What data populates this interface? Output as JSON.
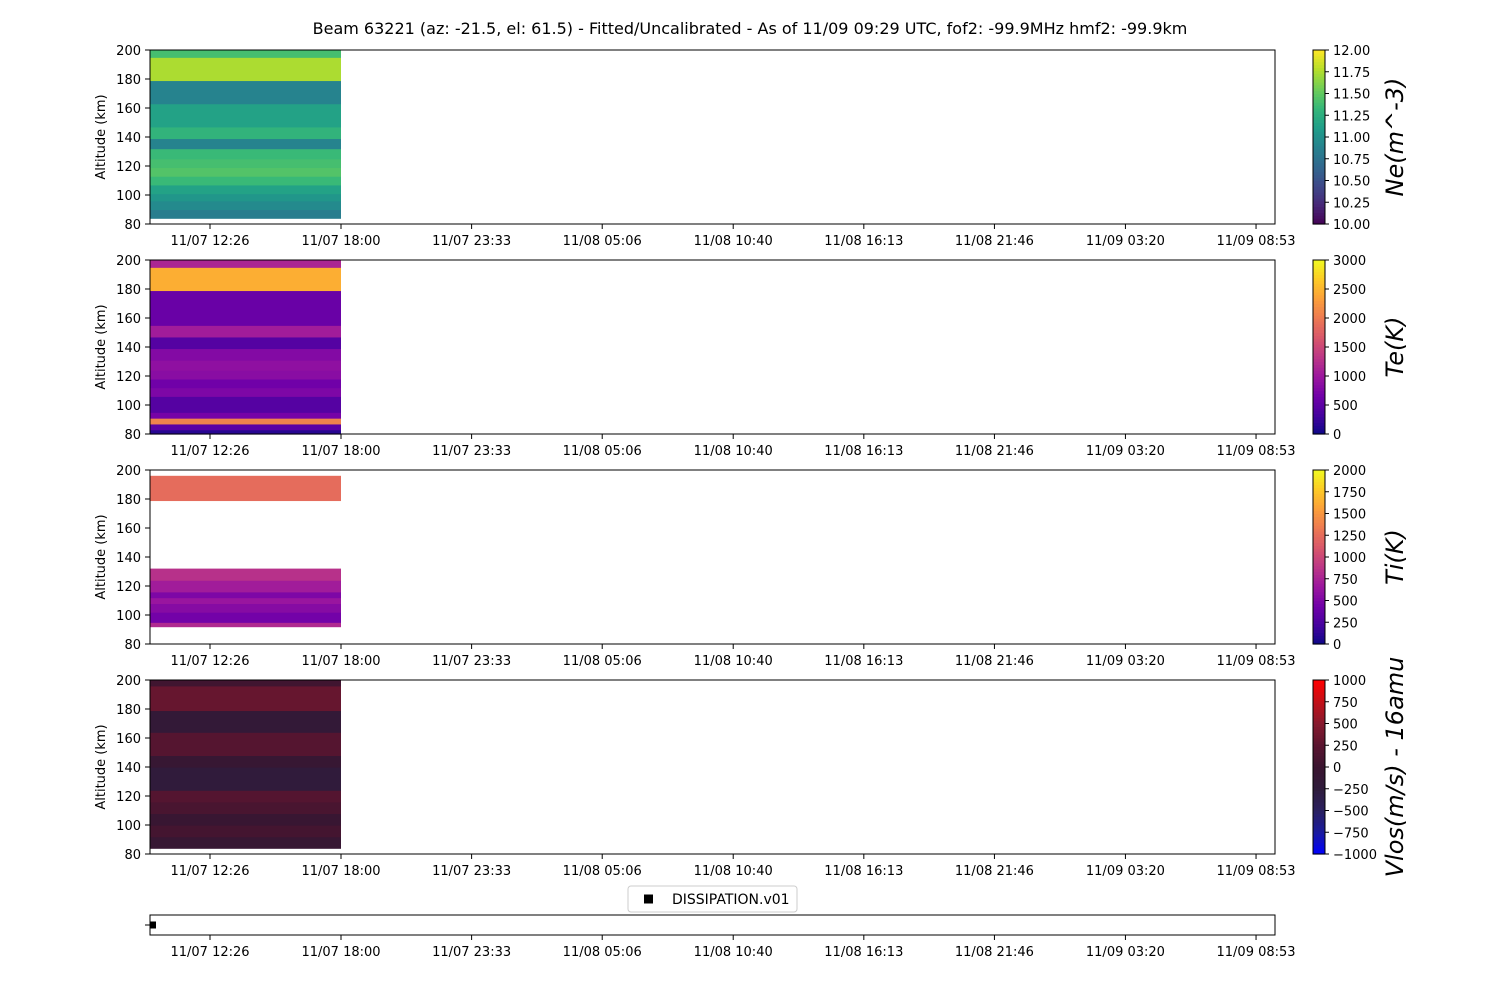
{
  "title": "Beam 63221 (az: -21.5, el: 61.5) - Fitted/Uncalibrated - As of 11/09 09:29 UTC, fof2: -99.9MHz  hmf2: -99.9km",
  "x_tick_labels": [
    "11/07 12:26",
    "11/07 18:00",
    "11/07 23:33",
    "11/08 05:06",
    "11/08 10:40",
    "11/08 16:13",
    "11/08 21:46",
    "11/09 03:20",
    "11/09 08:53"
  ],
  "legend_label": "DISSIPATION.v01",
  "chart_data": [
    {
      "type": "heatmap",
      "ylabel": "Altitude (km)",
      "ylim": [
        80,
        200
      ],
      "y_ticks": [
        80,
        100,
        120,
        140,
        160,
        180,
        200
      ],
      "x_span": [
        "11/07 09:49",
        "11/07 18:00"
      ],
      "colorbar_label": "Ne(m^-3)",
      "colormap": "viridis",
      "clim": [
        10.0,
        12.0
      ],
      "colorbar_ticks": [
        "10.00",
        "10.25",
        "10.50",
        "10.75",
        "11.00",
        "11.25",
        "11.50",
        "11.75",
        "12.00"
      ],
      "bands": [
        {
          "alt": [
            84,
            90
          ],
          "value": 10.85
        },
        {
          "alt": [
            90,
            96
          ],
          "value": 10.95
        },
        {
          "alt": [
            96,
            101
          ],
          "value": 11.05
        },
        {
          "alt": [
            101,
            107
          ],
          "value": 11.15
        },
        {
          "alt": [
            107,
            113
          ],
          "value": 11.35
        },
        {
          "alt": [
            113,
            119
          ],
          "value": 11.45
        },
        {
          "alt": [
            119,
            125
          ],
          "value": 11.4
        },
        {
          "alt": [
            125,
            132
          ],
          "value": 11.35
        },
        {
          "alt": [
            132,
            139
          ],
          "value": 10.9
        },
        {
          "alt": [
            139,
            147
          ],
          "value": 11.3
        },
        {
          "alt": [
            147,
            163
          ],
          "value": 11.15
        },
        {
          "alt": [
            163,
            179
          ],
          "value": 10.9
        },
        {
          "alt": [
            179,
            195
          ],
          "value": 11.75
        },
        {
          "alt": [
            195,
            200
          ],
          "value": 11.4
        }
      ]
    },
    {
      "type": "heatmap",
      "ylabel": "Altitude (km)",
      "ylim": [
        80,
        200
      ],
      "y_ticks": [
        80,
        100,
        120,
        140,
        160,
        180,
        200
      ],
      "x_span": [
        "11/07 09:49",
        "11/07 18:00"
      ],
      "colorbar_label": "Te(K)",
      "colormap": "plasma",
      "clim": [
        0,
        3000
      ],
      "colorbar_ticks": [
        "0",
        "500",
        "1000",
        "1500",
        "2000",
        "2500",
        "3000"
      ],
      "bands": [
        {
          "alt": [
            80,
            83
          ],
          "value": 150
        },
        {
          "alt": [
            83,
            87
          ],
          "value": 500
        },
        {
          "alt": [
            87,
            91
          ],
          "value": 2100
        },
        {
          "alt": [
            91,
            95
          ],
          "value": 700
        },
        {
          "alt": [
            95,
            106
          ],
          "value": 450
        },
        {
          "alt": [
            106,
            112
          ],
          "value": 750
        },
        {
          "alt": [
            112,
            118
          ],
          "value": 650
        },
        {
          "alt": [
            118,
            124
          ],
          "value": 850
        },
        {
          "alt": [
            124,
            131
          ],
          "value": 900
        },
        {
          "alt": [
            131,
            139
          ],
          "value": 800
        },
        {
          "alt": [
            139,
            147
          ],
          "value": 450
        },
        {
          "alt": [
            147,
            155
          ],
          "value": 1050
        },
        {
          "alt": [
            155,
            179
          ],
          "value": 600
        },
        {
          "alt": [
            179,
            195
          ],
          "value": 2450
        },
        {
          "alt": [
            195,
            200
          ],
          "value": 1150
        }
      ]
    },
    {
      "type": "heatmap",
      "ylabel": "Altitude (km)",
      "ylim": [
        80,
        200
      ],
      "y_ticks": [
        80,
        100,
        120,
        140,
        160,
        180,
        200
      ],
      "x_span": [
        "11/07 09:49",
        "11/07 18:00"
      ],
      "colorbar_label": "Ti(K)",
      "colormap": "plasma",
      "clim": [
        0,
        2000
      ],
      "colorbar_ticks": [
        "0",
        "250",
        "500",
        "750",
        "1000",
        "1250",
        "1500",
        "1750",
        "2000"
      ],
      "bands": [
        {
          "alt": [
            92,
            95
          ],
          "value": 800
        },
        {
          "alt": [
            95,
            102
          ],
          "value": 450
        },
        {
          "alt": [
            102,
            108
          ],
          "value": 550
        },
        {
          "alt": [
            108,
            112
          ],
          "value": 650
        },
        {
          "alt": [
            112,
            116
          ],
          "value": 500
        },
        {
          "alt": [
            116,
            124
          ],
          "value": 700
        },
        {
          "alt": [
            124,
            132
          ],
          "value": 850
        },
        {
          "alt": [
            179,
            196
          ],
          "value": 1250
        }
      ]
    },
    {
      "type": "heatmap",
      "ylabel": "Altitude (km)",
      "ylim": [
        80,
        200
      ],
      "y_ticks": [
        80,
        100,
        120,
        140,
        160,
        180,
        200
      ],
      "x_span": [
        "11/07 09:49",
        "11/07 18:00"
      ],
      "colorbar_label": "Vlos(m/s) - 16amu",
      "colormap": "diverging-blue-dark-red",
      "clim": [
        -1000,
        1000
      ],
      "colorbar_ticks": [
        "−1000",
        "−750",
        "−500",
        "−250",
        "0",
        "250",
        "500",
        "750",
        "1000"
      ],
      "bands": [
        {
          "alt": [
            84,
            92
          ],
          "value": -60
        },
        {
          "alt": [
            92,
            100
          ],
          "value": 80
        },
        {
          "alt": [
            100,
            108
          ],
          "value": -40
        },
        {
          "alt": [
            108,
            116
          ],
          "value": 120
        },
        {
          "alt": [
            116,
            124
          ],
          "value": 200
        },
        {
          "alt": [
            124,
            140
          ],
          "value": -220
        },
        {
          "alt": [
            140,
            148
          ],
          "value": -60
        },
        {
          "alt": [
            148,
            164
          ],
          "value": 210
        },
        {
          "alt": [
            164,
            179
          ],
          "value": -150
        },
        {
          "alt": [
            179,
            196
          ],
          "value": 320
        },
        {
          "alt": [
            196,
            200
          ],
          "value": 50
        }
      ]
    },
    {
      "type": "scatter",
      "series": [
        {
          "name": "DISSIPATION.v01",
          "x": [
            "11/07 09:49"
          ],
          "values": [
            0
          ]
        }
      ]
    }
  ]
}
